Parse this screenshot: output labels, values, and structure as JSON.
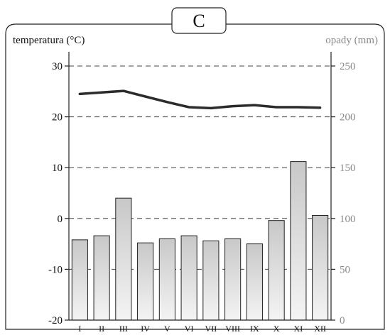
{
  "panel_label": "C",
  "chart_data": {
    "type": "bar+line",
    "title": "",
    "categories": [
      "I",
      "II",
      "III",
      "IV",
      "V",
      "VI",
      "VII",
      "VIII",
      "IX",
      "X",
      "XI",
      "XII"
    ],
    "left_axis": {
      "label": "temperatura (°C)",
      "ylim": [
        -20,
        30
      ],
      "ticks": [
        "30",
        "20",
        "10",
        "0",
        "-10",
        "-20"
      ]
    },
    "right_axis": {
      "label": "opady (mm)",
      "ylim": [
        0,
        250
      ],
      "ticks": [
        "250",
        "200",
        "150",
        "100",
        "50",
        "0"
      ]
    },
    "series": [
      {
        "kind": "line",
        "axis": "left",
        "values": [
          24.5,
          24.8,
          25.1,
          24.0,
          22.9,
          21.9,
          21.7,
          22.1,
          22.3,
          21.9,
          21.9,
          21.8
        ],
        "color": "#2b2b2b"
      },
      {
        "kind": "bar",
        "axis": "right",
        "values": [
          79,
          83,
          120,
          76,
          80,
          83,
          78,
          80,
          75,
          98,
          156,
          103
        ],
        "color": "#d6d6d6"
      }
    ],
    "grid": "dashed horizontal"
  }
}
